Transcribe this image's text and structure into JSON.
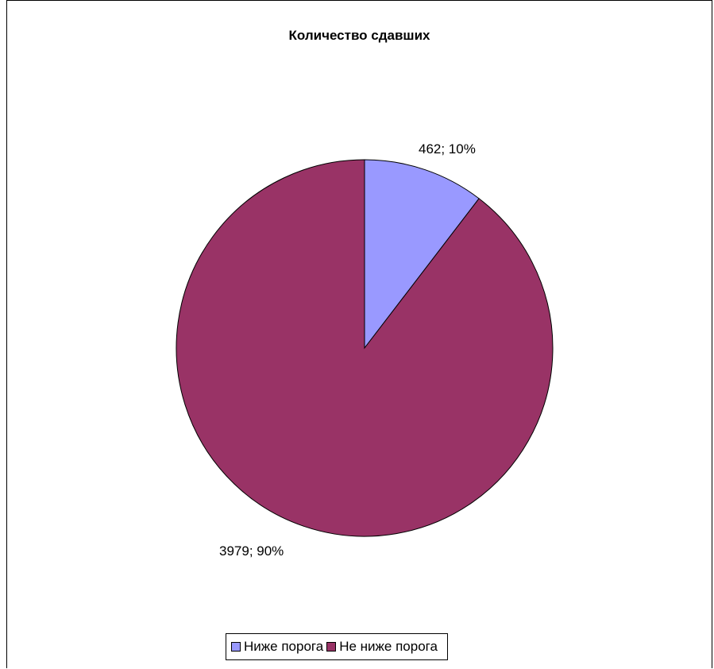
{
  "chart_data": {
    "type": "pie",
    "title": "Количество сдавших",
    "categories": [
      "Ниже порога",
      "Не ниже порога"
    ],
    "values": [
      462,
      3979
    ],
    "percentages": [
      10,
      90
    ],
    "data_labels": [
      "462; 10%",
      "3979; 90%"
    ],
    "colors": [
      "#9999FF",
      "#993366"
    ],
    "legend": {
      "position": "bottom",
      "labels": [
        "Ниже порога",
        "Не ниже порога"
      ]
    }
  }
}
